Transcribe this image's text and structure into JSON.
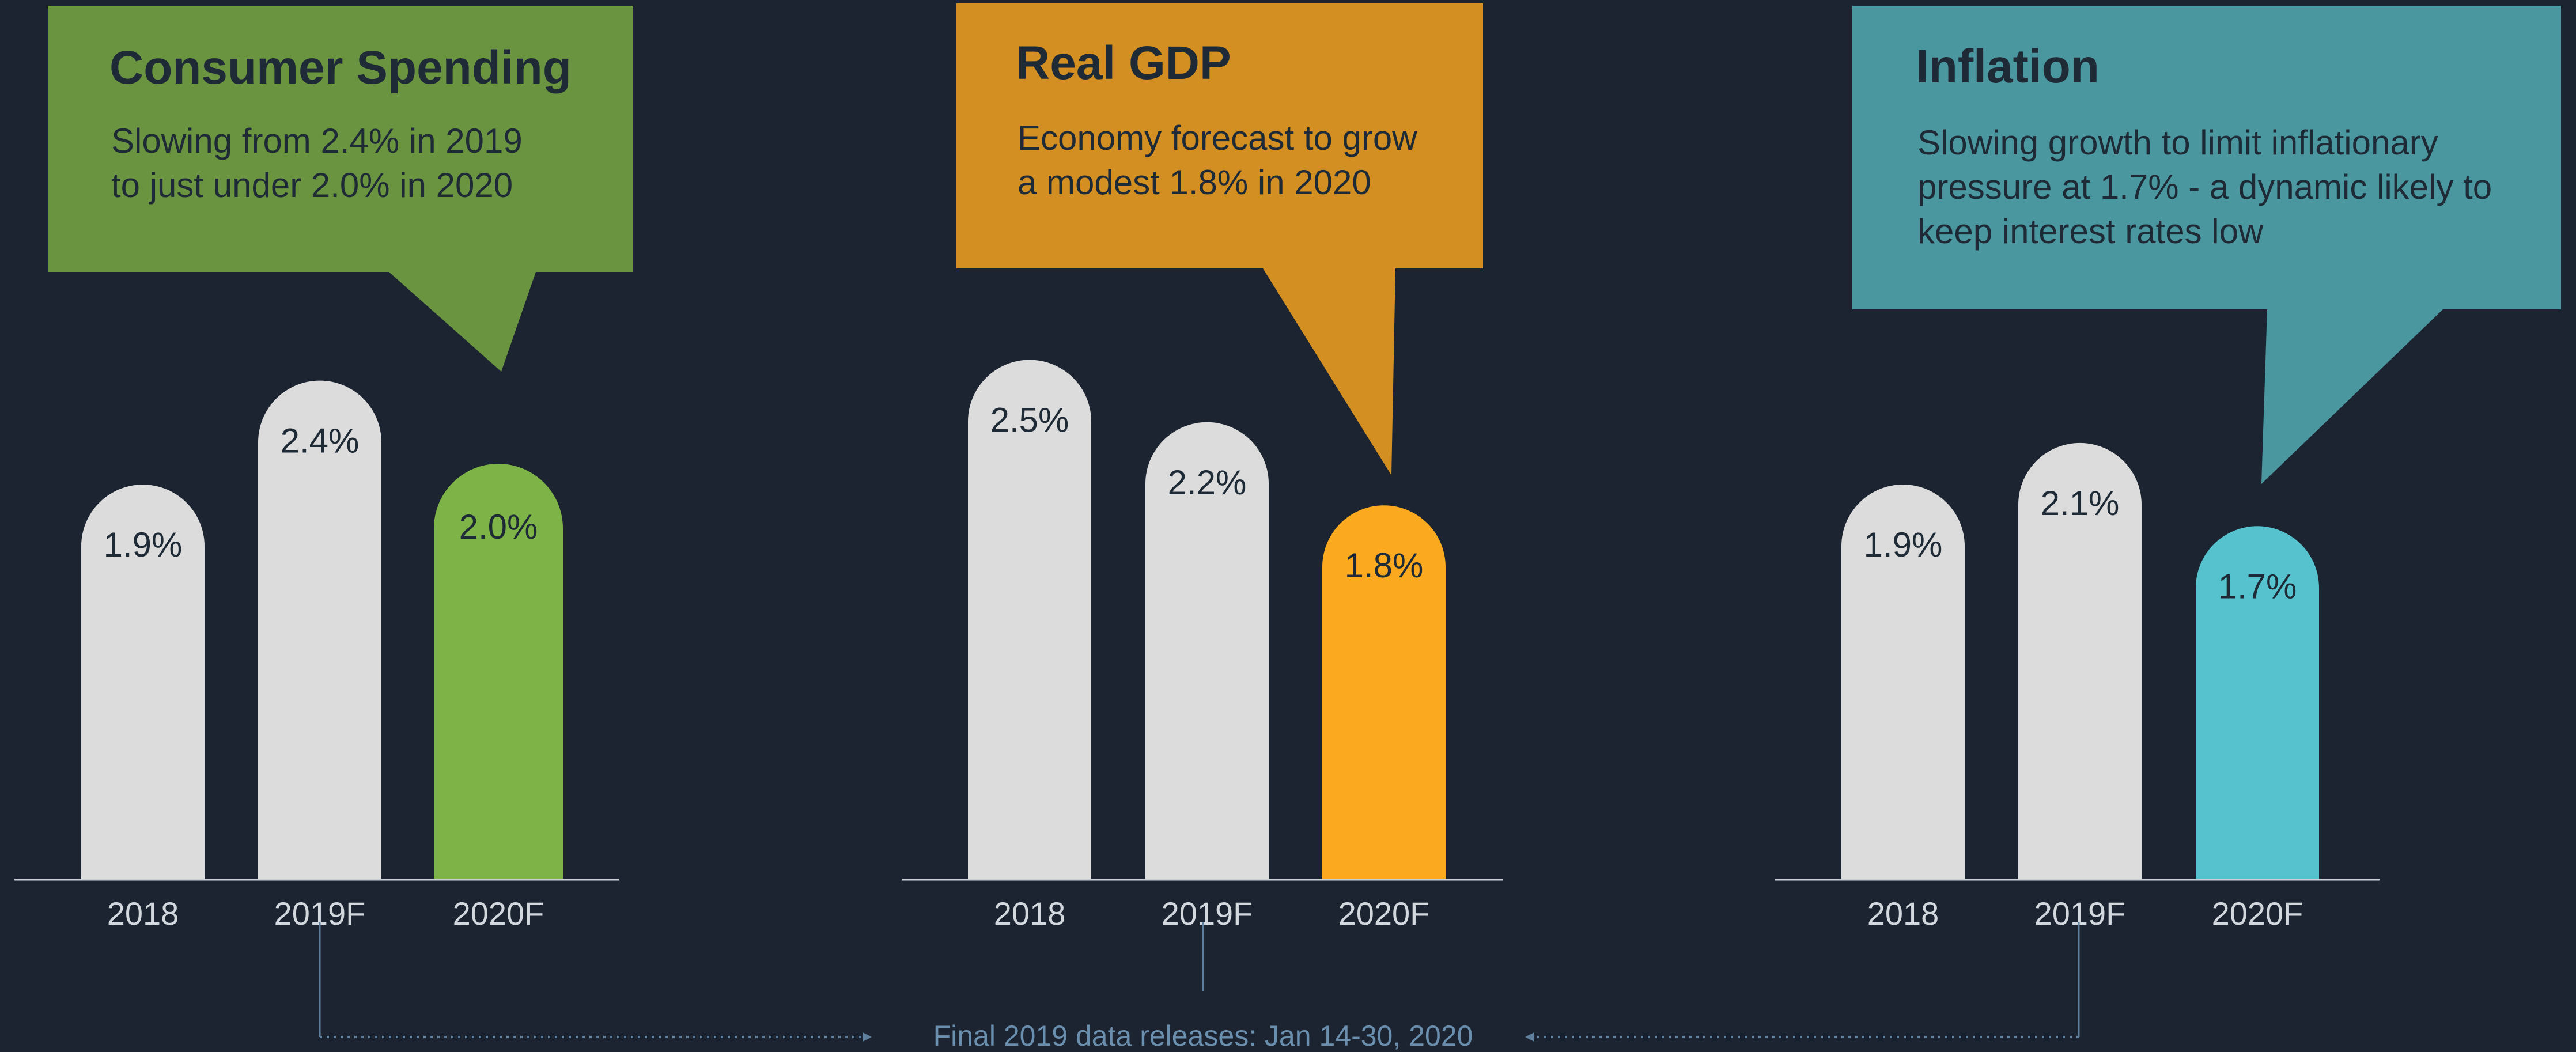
{
  "colors": {
    "background": "#1b2430",
    "bar_gray": "#dcdcdc",
    "text_dark": "#1e2a36",
    "axis_label": "#d2d8de",
    "footer_text": "#6a8fae",
    "connector": "#5f7f9c"
  },
  "footer": {
    "text": "Final 2019 data releases: Jan 14-30, 2020"
  },
  "chart_data": [
    {
      "type": "bar",
      "title": "Consumer Spending",
      "subtitle": [
        "Slowing from 2.4% in 2019",
        "to just under 2.0% in 2020"
      ],
      "callout_color": "#6b9441",
      "highlight_color": "#7db347",
      "categories": [
        "2018",
        "2019F",
        "2020F"
      ],
      "values": [
        1.9,
        2.4,
        2.0
      ],
      "value_labels": [
        "1.9%",
        "2.4%",
        "2.0%"
      ],
      "highlight_index": 2,
      "ylim": [
        0,
        2.6
      ]
    },
    {
      "type": "bar",
      "title": "Real GDP",
      "subtitle": [
        "Economy forecast to grow",
        "a modest 1.8% in 2020"
      ],
      "callout_color": "#d38f21",
      "highlight_color": "#fbaa20",
      "categories": [
        "2018",
        "2019F",
        "2020F"
      ],
      "values": [
        2.5,
        2.2,
        1.8
      ],
      "value_labels": [
        "2.5%",
        "2.2%",
        "1.8%"
      ],
      "highlight_index": 2,
      "ylim": [
        0,
        2.6
      ]
    },
    {
      "type": "bar",
      "title": "Inflation",
      "subtitle": [
        "Slowing growth to limit inflationary",
        "pressure at 1.7% - a dynamic likely to",
        "keep interest rates low"
      ],
      "callout_color": "#4b97a0",
      "highlight_color": "#56c2cd",
      "categories": [
        "2018",
        "2019F",
        "2020F"
      ],
      "values": [
        1.9,
        2.1,
        1.7
      ],
      "value_labels": [
        "1.9%",
        "2.1%",
        "1.7%"
      ],
      "highlight_index": 2,
      "ylim": [
        0,
        2.6
      ]
    }
  ]
}
